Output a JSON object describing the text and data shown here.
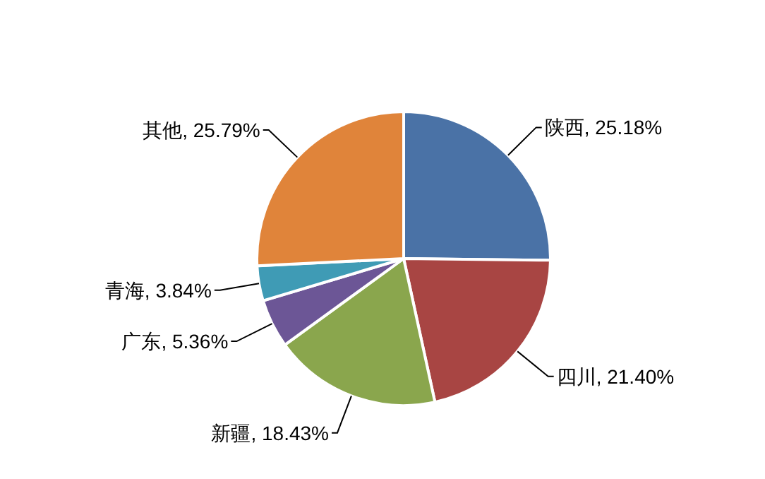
{
  "chart_data": {
    "type": "pie",
    "categories": [
      "陕西",
      "四川",
      "新疆",
      "广东",
      "青海",
      "其他"
    ],
    "values": [
      25.18,
      21.4,
      18.43,
      5.36,
      3.84,
      25.79
    ],
    "colors": [
      "#4a72a6",
      "#a84543",
      "#8aa64d",
      "#6c5696",
      "#3f9bb5",
      "#e0843a"
    ],
    "value_labels": [
      ", 25.18%",
      ", 21.40%",
      ", 18.43%",
      ", 5.36%",
      ", 3.84%",
      ", 25.79%"
    ]
  }
}
